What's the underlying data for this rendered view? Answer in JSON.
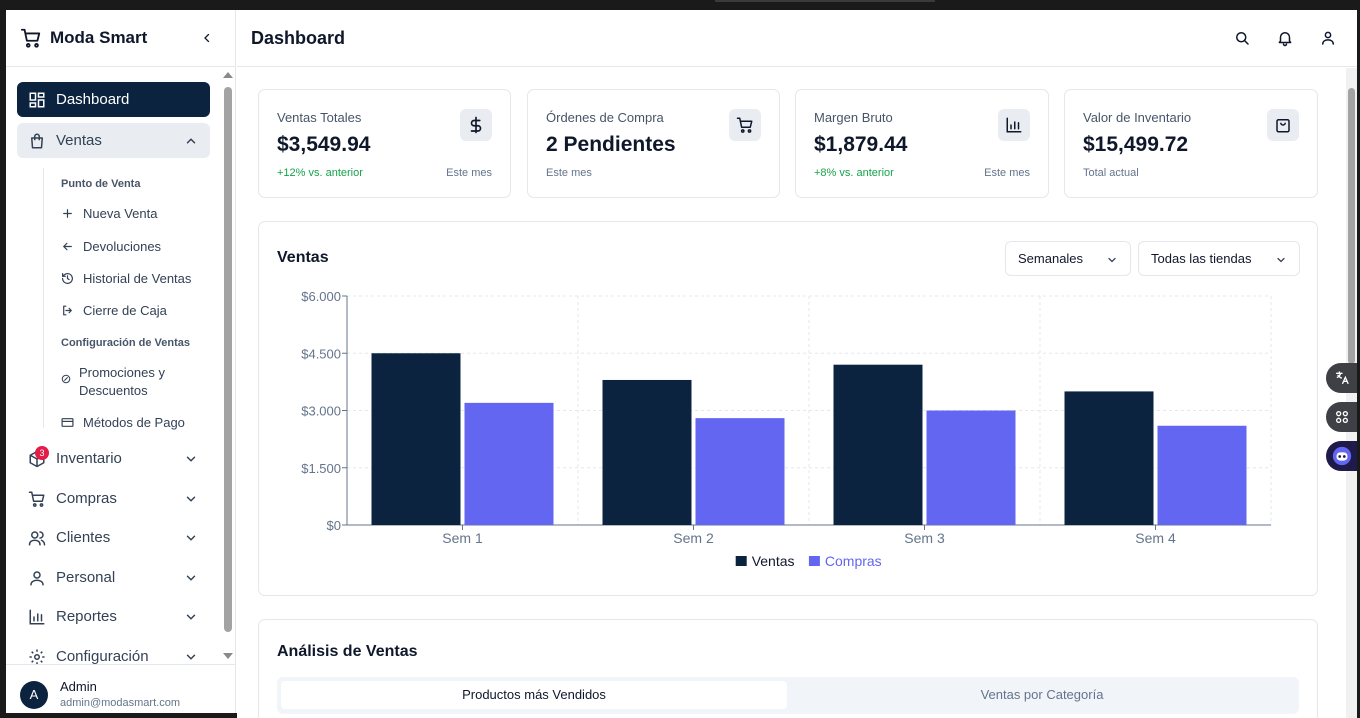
{
  "app": {
    "name": "Moda Smart"
  },
  "header": {
    "title": "Dashboard"
  },
  "sidebar": {
    "items": [
      {
        "label": "Dashboard"
      },
      {
        "label": "Ventas"
      },
      {
        "label": "Inventario",
        "badge": "3"
      },
      {
        "label": "Compras"
      },
      {
        "label": "Clientes"
      },
      {
        "label": "Personal"
      },
      {
        "label": "Reportes"
      },
      {
        "label": "Configuración"
      }
    ],
    "ventas_sub": {
      "section1": "Punto de Venta",
      "nueva_venta": "Nueva Venta",
      "devoluciones": "Devoluciones",
      "historial": "Historial de Ventas",
      "cierre": "Cierre de Caja",
      "section2": "Configuración de Ventas",
      "promociones_1": "Promociones y",
      "promociones_2": "Descuentos",
      "metodos": "Métodos de Pago"
    },
    "user": {
      "initial": "A",
      "name": "Admin",
      "email": "admin@modasmart.com"
    }
  },
  "stats": [
    {
      "label": "Ventas Totales",
      "value": "$3,549.94",
      "change": "+12% vs. anterior",
      "note": "Este mes",
      "icon": "dollar-icon"
    },
    {
      "label": "Órdenes de Compra",
      "value": "2 Pendientes",
      "note": "Este mes",
      "icon": "cart-icon"
    },
    {
      "label": "Margen Bruto",
      "value": "$1,879.44",
      "change": "+8% vs. anterior",
      "note": "Este mes",
      "icon": "bar-chart-icon"
    },
    {
      "label": "Valor de Inventario",
      "value": "$15,499.72",
      "note": "Total actual",
      "icon": "bag-icon"
    }
  ],
  "sales_chart": {
    "title": "Ventas",
    "period_select": "Semanales",
    "store_select": "Todas las tiendas"
  },
  "chart_data": {
    "type": "bar",
    "categories": [
      "Sem 1",
      "Sem 2",
      "Sem 3",
      "Sem 4"
    ],
    "series": [
      {
        "name": "Ventas",
        "values": [
          4500,
          3800,
          4200,
          3500
        ],
        "color": "#0c2340"
      },
      {
        "name": "Compras",
        "values": [
          3200,
          2800,
          3000,
          2600
        ],
        "color": "#6366f1"
      }
    ],
    "yticks": [
      "$0",
      "$1.500",
      "$3.000",
      "$4.500",
      "$6.000"
    ],
    "ylim": [
      0,
      6000
    ],
    "grid": true,
    "legend": "bottom-center"
  },
  "analysis": {
    "title": "Análisis de Ventas",
    "tabs": [
      "Productos más Vendidos",
      "Ventas por Categoría"
    ]
  },
  "colors": {
    "primary": "#0c2340",
    "accent": "#6366f1",
    "positive": "#16a34a",
    "badge": "#e11d48"
  }
}
